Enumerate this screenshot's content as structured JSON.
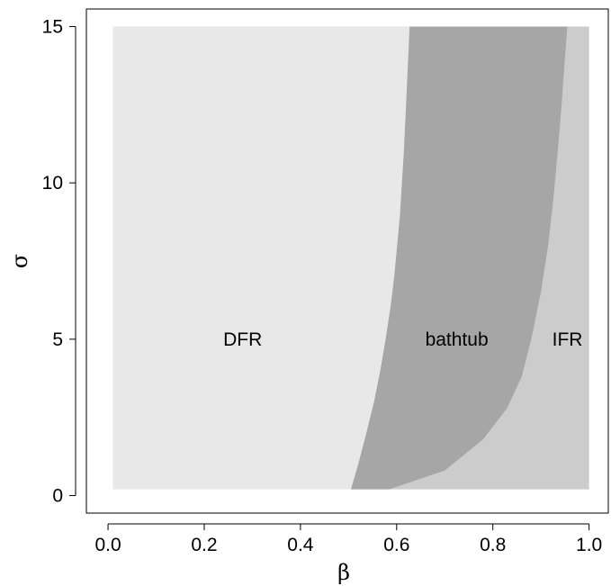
{
  "chart_data": {
    "type": "area",
    "xlabel": "β",
    "ylabel": "σ",
    "xlim": [
      0.0,
      1.0
    ],
    "ylim": [
      0,
      15
    ],
    "xticks": [
      "0.0",
      "0.2",
      "0.4",
      "0.6",
      "0.8",
      "1.0"
    ],
    "xtick_values": [
      0.0,
      0.2,
      0.4,
      0.6,
      0.8,
      1.0
    ],
    "yticks": [
      "0",
      "5",
      "10",
      "15"
    ],
    "ytick_values": [
      0,
      5,
      10,
      15
    ],
    "grid": false,
    "domain": {
      "beta": [
        0.01,
        1.0
      ],
      "sigma": [
        0.2,
        15
      ]
    },
    "regions": [
      {
        "label": "DFR",
        "color": "#e8e8e8",
        "label_at": [
          0.28,
          5
        ]
      },
      {
        "label": "bathtub",
        "color": "#a6a6a6",
        "label_at": [
          0.725,
          5
        ]
      },
      {
        "label": "IFR",
        "color": "#cccccc",
        "label_at": [
          0.955,
          5
        ]
      }
    ],
    "boundaries": {
      "dfr_bathtub": [
        {
          "beta": 0.505,
          "sigma": 0.2
        },
        {
          "beta": 0.52,
          "sigma": 1.0
        },
        {
          "beta": 0.537,
          "sigma": 2.0
        },
        {
          "beta": 0.553,
          "sigma": 3.0
        },
        {
          "beta": 0.566,
          "sigma": 4.0
        },
        {
          "beta": 0.577,
          "sigma": 5.0
        },
        {
          "beta": 0.587,
          "sigma": 6.0
        },
        {
          "beta": 0.595,
          "sigma": 7.0
        },
        {
          "beta": 0.601,
          "sigma": 8.0
        },
        {
          "beta": 0.607,
          "sigma": 9.0
        },
        {
          "beta": 0.611,
          "sigma": 10.0
        },
        {
          "beta": 0.615,
          "sigma": 11.0
        },
        {
          "beta": 0.618,
          "sigma": 12.0
        },
        {
          "beta": 0.621,
          "sigma": 13.0
        },
        {
          "beta": 0.624,
          "sigma": 14.0
        },
        {
          "beta": 0.627,
          "sigma": 15.0
        }
      ],
      "bathtub_ifr": [
        {
          "beta": 0.585,
          "sigma": 0.2
        },
        {
          "beta": 0.7,
          "sigma": 0.8
        },
        {
          "beta": 0.78,
          "sigma": 1.8
        },
        {
          "beta": 0.83,
          "sigma": 2.8
        },
        {
          "beta": 0.86,
          "sigma": 3.8
        },
        {
          "beta": 0.88,
          "sigma": 5.0
        },
        {
          "beta": 0.9,
          "sigma": 6.5
        },
        {
          "beta": 0.915,
          "sigma": 8.0
        },
        {
          "beta": 0.926,
          "sigma": 9.5
        },
        {
          "beta": 0.935,
          "sigma": 11.0
        },
        {
          "beta": 0.943,
          "sigma": 12.5
        },
        {
          "beta": 0.95,
          "sigma": 14.0
        },
        {
          "beta": 0.955,
          "sigma": 15.0
        }
      ]
    }
  }
}
